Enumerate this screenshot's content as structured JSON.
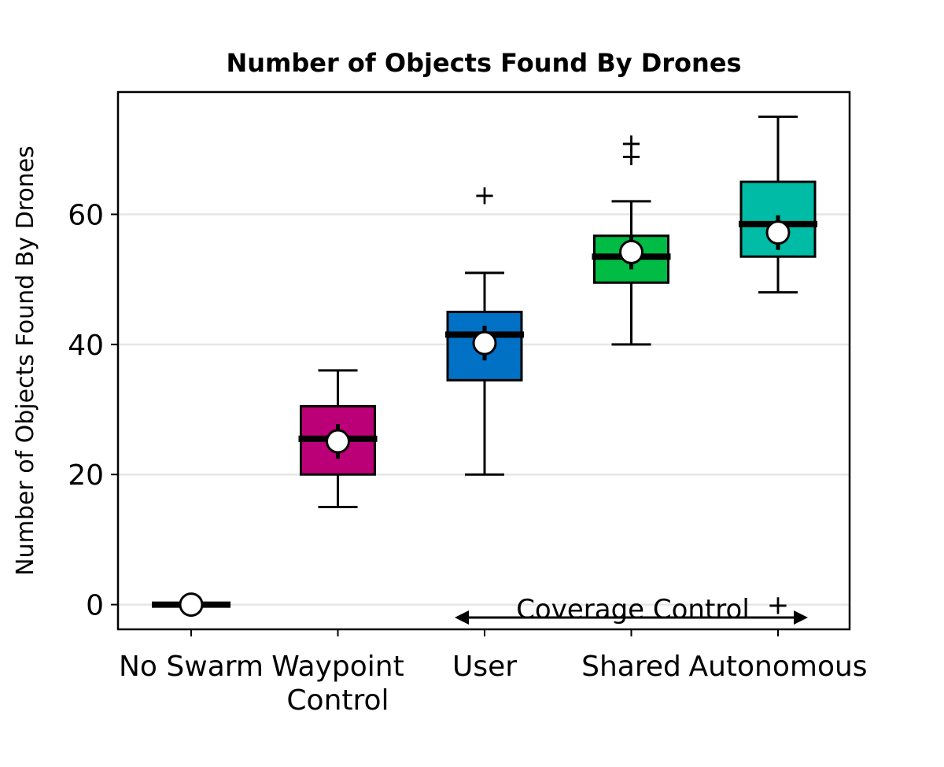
{
  "chart_data": {
    "type": "box",
    "title": "Number of Objects Found By Drones",
    "xlabel": "",
    "ylabel": "Number of Objects Found By Drones",
    "ylim": [
      -3.8,
      78.8
    ],
    "yticks": [
      0,
      20,
      40,
      60
    ],
    "grid": "y",
    "categories": [
      "No Swarm",
      "Waypoint\nControl",
      "User",
      "Shared",
      "Autonomous"
    ],
    "boxes": [
      {
        "category": "No Swarm",
        "color": "#000000",
        "q1": 0,
        "median": 0,
        "q3": 0,
        "whisker_low": 0,
        "whisker_high": 0,
        "mean": 0,
        "outliers": []
      },
      {
        "category": "Waypoint\nControl",
        "color": "#bb0077",
        "q1": 20,
        "median": 25.5,
        "q3": 30.5,
        "whisker_low": 15,
        "whisker_high": 36,
        "mean": 25.1,
        "outliers": []
      },
      {
        "category": "User",
        "color": "#0071c5",
        "q1": 34.5,
        "median": 41.5,
        "q3": 45,
        "whisker_low": 20,
        "whisker_high": 51,
        "mean": 40.2,
        "outliers": [
          63
        ]
      },
      {
        "category": "Shared",
        "color": "#00bb44",
        "q1": 49.5,
        "median": 53.5,
        "q3": 56.7,
        "whisker_low": 40,
        "whisker_high": 62,
        "mean": 54.2,
        "outliers": [
          69,
          71
        ]
      },
      {
        "category": "Autonomous",
        "color": "#00bba5",
        "q1": 53.5,
        "median": 58.5,
        "q3": 65,
        "whisker_low": 48,
        "whisker_high": 75,
        "mean": 57.2,
        "outliers": [
          0
        ]
      }
    ],
    "annotation": {
      "text": "Coverage Control",
      "from": "User",
      "to": "Autonomous"
    }
  }
}
